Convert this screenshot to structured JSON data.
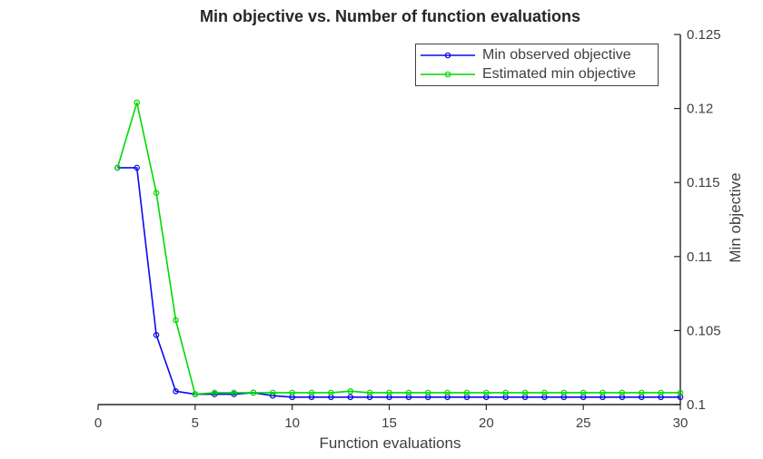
{
  "figure": {
    "title": "Min objective vs. Number of function evaluations",
    "xlabel": "Function evaluations",
    "ylabel": "Min objective"
  },
  "legend": {
    "items": [
      {
        "label": "Min observed objective"
      },
      {
        "label": "Estimated min objective"
      }
    ]
  },
  "colors": {
    "background": "#ffffff",
    "axis": "#262626",
    "tick_text": "#3f3f3f",
    "title_text": "#262626",
    "legend_border": "#404040"
  },
  "chart_data": {
    "type": "line",
    "title": "Min objective vs. Number of function evaluations",
    "xlabel": "Function evaluations",
    "ylabel": "Min objective",
    "xlim": [
      0,
      30
    ],
    "ylim": [
      0.1,
      0.125
    ],
    "x_ticks": [
      0,
      5,
      10,
      15,
      20,
      25,
      30
    ],
    "y_ticks": [
      0.1,
      0.105,
      0.11,
      0.115,
      0.12,
      0.125
    ],
    "grid": false,
    "y_axis_location": "right",
    "legend_position": "top-center-inside",
    "x": [
      1,
      2,
      3,
      4,
      5,
      6,
      7,
      8,
      9,
      10,
      11,
      12,
      13,
      14,
      15,
      16,
      17,
      18,
      19,
      20,
      21,
      22,
      23,
      24,
      25,
      26,
      27,
      28,
      29,
      30
    ],
    "series": [
      {
        "name": "Min observed objective",
        "color": "#0a0aea",
        "marker": "o",
        "values": [
          0.116,
          0.116,
          0.1047,
          0.1009,
          0.1007,
          0.1007,
          0.1007,
          0.1008,
          0.1006,
          0.1005,
          0.1005,
          0.1005,
          0.1005,
          0.1005,
          0.1005,
          0.1005,
          0.1005,
          0.1005,
          0.1005,
          0.1005,
          0.1005,
          0.1005,
          0.1005,
          0.1005,
          0.1005,
          0.1005,
          0.1005,
          0.1005,
          0.1005,
          0.1005
        ]
      },
      {
        "name": "Estimated min objective",
        "color": "#00d900",
        "marker": "o",
        "values": [
          0.116,
          0.1204,
          0.1143,
          0.1057,
          0.1007,
          0.1008,
          0.1008,
          0.1008,
          0.1008,
          0.1008,
          0.1008,
          0.1008,
          0.1009,
          0.1008,
          0.1008,
          0.1008,
          0.1008,
          0.1008,
          0.1008,
          0.1008,
          0.1008,
          0.1008,
          0.1008,
          0.1008,
          0.1008,
          0.1008,
          0.1008,
          0.1008,
          0.1008,
          0.1008
        ]
      }
    ]
  }
}
